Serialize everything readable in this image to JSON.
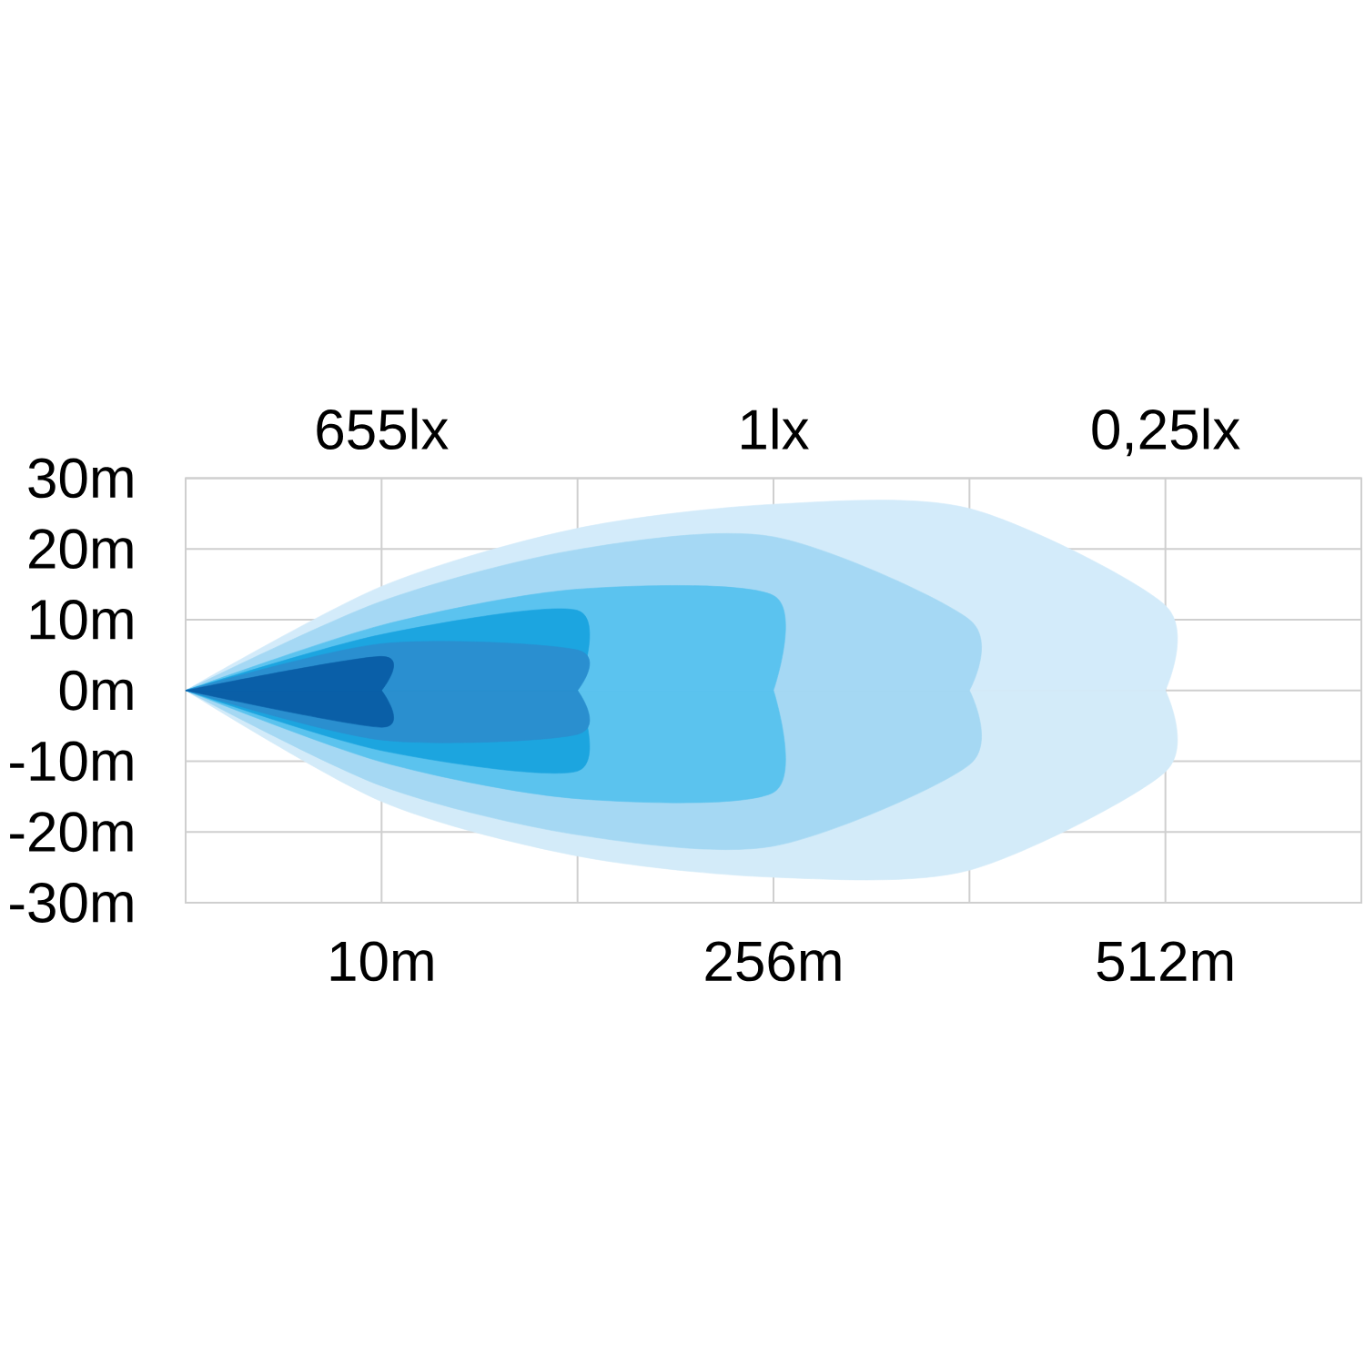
{
  "chart_data": {
    "type": "area",
    "categories": [
      null,
      "10m",
      null,
      "256m",
      null,
      "512m",
      null
    ],
    "ylim": [
      -30,
      30
    ],
    "yticks": [
      {
        "value": -30,
        "label": "-30m"
      },
      {
        "value": -20,
        "label": "-20m"
      },
      {
        "value": -10,
        "label": "-10m"
      },
      {
        "value": 0,
        "label": "0m"
      },
      {
        "value": 10,
        "label": "10m"
      },
      {
        "value": 20,
        "label": "20m"
      },
      {
        "value": 30,
        "label": "30m"
      }
    ],
    "grid": true,
    "annotations": [
      "655lx",
      "1lx",
      "0,25lx"
    ],
    "series": [
      {
        "color": "#d3ebfa",
        "values": [
          0,
          14.7,
          22.9,
          26.3,
          25.7,
          12,
          null
        ]
      },
      {
        "color": "#d3ebf9",
        "values": [
          0,
          -15.7,
          -23.4,
          -26.4,
          -25.4,
          -11.5,
          null
        ]
      },
      {
        "color": "#a5d8f4",
        "values": [
          0,
          12.6,
          19.9,
          21.7,
          10,
          null,
          null
        ]
      },
      {
        "color": "#a5d8f3",
        "values": [
          0,
          -13.5,
          -20.4,
          -22,
          -10.5,
          null,
          null
        ]
      },
      {
        "color": "#5bc3ef",
        "values": [
          0,
          9.2,
          14.3,
          13.4,
          null,
          null,
          null
        ]
      },
      {
        "color": "#5bc3ee",
        "values": [
          0,
          -10.1,
          -15.3,
          -14.4,
          null,
          null,
          null
        ]
      },
      {
        "color": "#1ca5e0",
        "values": [
          0,
          7.9,
          11.3,
          null,
          null,
          null,
          null
        ]
      },
      {
        "color": "#1ca5df",
        "values": [
          0,
          -8.5,
          -11.4,
          null,
          null,
          null,
          null
        ]
      },
      {
        "color": "#2a8fd0",
        "values": [
          0,
          6.6,
          5.7,
          null,
          null,
          null,
          null
        ]
      },
      {
        "color": "#2a8fcf",
        "values": [
          0,
          -7.0,
          -6.2,
          null,
          null,
          null,
          null
        ]
      },
      {
        "color": "#0a5fa8",
        "values": [
          0,
          4.8,
          null,
          null,
          null,
          null,
          null
        ]
      },
      {
        "color": "#0a5fa7",
        "values": [
          0,
          -5.2,
          null,
          null,
          null,
          null,
          null
        ]
      }
    ]
  }
}
